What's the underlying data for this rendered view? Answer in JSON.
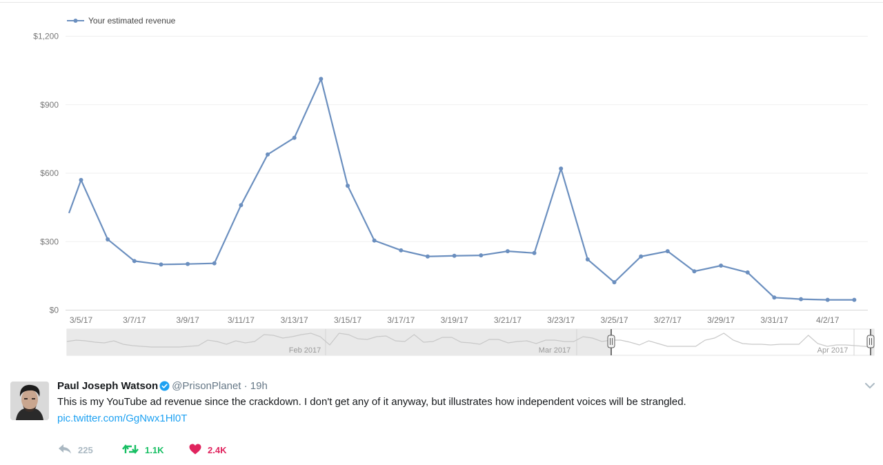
{
  "chart_data": {
    "type": "line",
    "series": [
      {
        "name": "Your estimated revenue",
        "x": [
          "3/4/17",
          "3/5/17",
          "3/6/17",
          "3/7/17",
          "3/8/17",
          "3/9/17",
          "3/10/17",
          "3/11/17",
          "3/12/17",
          "3/13/17",
          "3/14/17",
          "3/15/17",
          "3/16/17",
          "3/17/17",
          "3/18/17",
          "3/19/17",
          "3/20/17",
          "3/21/17",
          "3/22/17",
          "3/23/17",
          "3/24/17",
          "3/25/17",
          "3/26/17",
          "3/27/17",
          "3/28/17",
          "3/29/17",
          "3/30/17",
          "3/31/17",
          "4/1/17",
          "4/2/17",
          "4/3/17"
        ],
        "values": [
          250,
          570,
          310,
          215,
          200,
          202,
          205,
          460,
          682,
          755,
          1013,
          545,
          305,
          262,
          235,
          238,
          240,
          258,
          250,
          620,
          222,
          122,
          235,
          258,
          170,
          195,
          165,
          55,
          48,
          45,
          45
        ],
        "color": "#6b8fbf"
      }
    ],
    "ylim": [
      0,
      1200
    ],
    "y_ticks": [
      {
        "value": 0,
        "label": "$0"
      },
      {
        "value": 300,
        "label": "$300"
      },
      {
        "value": 600,
        "label": "$600"
      },
      {
        "value": 900,
        "label": "$900"
      },
      {
        "value": 1200,
        "label": "$1,200"
      }
    ],
    "x_ticks": [
      "3/5/17",
      "3/7/17",
      "3/9/17",
      "3/11/17",
      "3/13/17",
      "3/15/17",
      "3/17/17",
      "3/19/17",
      "3/21/17",
      "3/23/17",
      "3/25/17",
      "3/27/17",
      "3/29/17",
      "3/31/17",
      "4/2/17"
    ],
    "legend": "top-left",
    "grid": true,
    "navigator": {
      "labels": [
        "Feb 2017",
        "Mar 2017",
        "Apr 2017"
      ],
      "overview_values": [
        18,
        20,
        19,
        17,
        16,
        19,
        14,
        12,
        11,
        10,
        10,
        10,
        10,
        11,
        12,
        20,
        18,
        14,
        19,
        16,
        18,
        28,
        27,
        23,
        25,
        28,
        30,
        25,
        13,
        30,
        28,
        22,
        21,
        25,
        26,
        19,
        18,
        28,
        17,
        18,
        24,
        24,
        17,
        16,
        14,
        21,
        21,
        16,
        18,
        19,
        15,
        20,
        20,
        18,
        18,
        25,
        23,
        18,
        20,
        20,
        17,
        13,
        19,
        15,
        11,
        11,
        11,
        11,
        20,
        23,
        30,
        20,
        15,
        14,
        14,
        13,
        14,
        14,
        14,
        27,
        15,
        11,
        13,
        13,
        12,
        11,
        9
      ]
    }
  },
  "tweet": {
    "author_name": "Paul Joseph Watson",
    "handle": "@PrisonPlanet",
    "separator": "·",
    "time": "19h",
    "text": "This is my YouTube ad revenue since the crackdown. I don't get any of it anyway, but illustrates how independent voices will be strangled.",
    "link": "pic.twitter.com/GgNwx1Hl0T",
    "reply_count": "225",
    "retweet_count": "1.1K",
    "like_count": "2.4K"
  },
  "colors": {
    "series": "#6b8fbf",
    "link": "#1da1f2",
    "retweet": "#17bf63",
    "like": "#e0245e",
    "muted": "#657786",
    "verified": "#1da1f2"
  },
  "icons": {
    "reply": "reply-icon",
    "retweet": "retweet-icon",
    "like": "heart-icon",
    "verified": "verified-badge-icon",
    "more": "chevron-down-icon"
  }
}
